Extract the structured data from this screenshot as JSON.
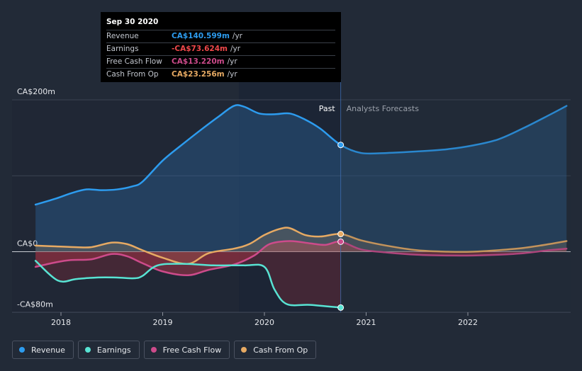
{
  "chart_data": {
    "type": "line",
    "x_axis_ticks": [
      "2018",
      "2019",
      "2020",
      "2021",
      "2022"
    ],
    "y_axis_labels": [
      "CA$200m",
      "CA$0",
      "-CA$80m"
    ],
    "ylim": [
      -80,
      200
    ],
    "x_range": [
      2017.75,
      2022.97
    ],
    "past_forecast_split": 2020.75,
    "region_labels": {
      "past": "Past",
      "forecast": "Analysts Forecasts"
    },
    "series": [
      {
        "name": "Revenue",
        "color": "#2d9cef",
        "fill": true,
        "points": [
          [
            2017.75,
            62
          ],
          [
            2017.95,
            70
          ],
          [
            2018.1,
            77
          ],
          [
            2018.25,
            82
          ],
          [
            2018.4,
            81
          ],
          [
            2018.55,
            82
          ],
          [
            2018.7,
            86
          ],
          [
            2018.8,
            92
          ],
          [
            2019.0,
            120
          ],
          [
            2019.2,
            142
          ],
          [
            2019.4,
            163
          ],
          [
            2019.55,
            178
          ],
          [
            2019.7,
            192
          ],
          [
            2019.8,
            191
          ],
          [
            2019.95,
            182
          ],
          [
            2020.1,
            181
          ],
          [
            2020.25,
            182
          ],
          [
            2020.4,
            174
          ],
          [
            2020.55,
            162
          ],
          [
            2020.75,
            140.6
          ],
          [
            2020.95,
            130
          ],
          [
            2021.2,
            130
          ],
          [
            2021.5,
            132
          ],
          [
            2021.8,
            135
          ],
          [
            2022.05,
            140
          ],
          [
            2022.3,
            148
          ],
          [
            2022.55,
            163
          ],
          [
            2022.8,
            180
          ],
          [
            2022.97,
            192
          ]
        ]
      },
      {
        "name": "Earnings",
        "color": "#58e3d3",
        "fill": true,
        "points": [
          [
            2017.75,
            -12
          ],
          [
            2017.97,
            -38
          ],
          [
            2018.15,
            -36
          ],
          [
            2018.35,
            -34
          ],
          [
            2018.55,
            -34
          ],
          [
            2018.72,
            -35
          ],
          [
            2018.8,
            -32
          ],
          [
            2018.95,
            -18
          ],
          [
            2019.2,
            -16
          ],
          [
            2019.5,
            -18
          ],
          [
            2019.8,
            -18
          ],
          [
            2020.0,
            -20
          ],
          [
            2020.1,
            -50
          ],
          [
            2020.22,
            -69
          ],
          [
            2020.45,
            -70
          ],
          [
            2020.75,
            -73.6
          ]
        ]
      },
      {
        "name": "Free Cash Flow",
        "color": "#cd4b8b",
        "fill": true,
        "points": [
          [
            2017.75,
            -20
          ],
          [
            2017.95,
            -14
          ],
          [
            2018.1,
            -11
          ],
          [
            2018.3,
            -10
          ],
          [
            2018.5,
            -3
          ],
          [
            2018.65,
            -6
          ],
          [
            2018.8,
            -15
          ],
          [
            2019.0,
            -26
          ],
          [
            2019.25,
            -31
          ],
          [
            2019.45,
            -24
          ],
          [
            2019.7,
            -17
          ],
          [
            2019.9,
            -5
          ],
          [
            2020.05,
            10
          ],
          [
            2020.25,
            14
          ],
          [
            2020.45,
            11
          ],
          [
            2020.6,
            9
          ],
          [
            2020.75,
            13.2
          ],
          [
            2020.95,
            3
          ],
          [
            2021.2,
            -1
          ],
          [
            2021.5,
            -4
          ],
          [
            2021.8,
            -5
          ],
          [
            2022.05,
            -5
          ],
          [
            2022.3,
            -4
          ],
          [
            2022.55,
            -2
          ],
          [
            2022.8,
            2
          ],
          [
            2022.97,
            4
          ]
        ]
      },
      {
        "name": "Cash From Op",
        "color": "#e7aa63",
        "fill": true,
        "points": [
          [
            2017.75,
            8
          ],
          [
            2017.95,
            7
          ],
          [
            2018.15,
            6
          ],
          [
            2018.3,
            6
          ],
          [
            2018.5,
            12
          ],
          [
            2018.65,
            10
          ],
          [
            2018.8,
            2
          ],
          [
            2019.0,
            -8
          ],
          [
            2019.25,
            -16
          ],
          [
            2019.45,
            -2
          ],
          [
            2019.7,
            4
          ],
          [
            2019.85,
            10
          ],
          [
            2020.0,
            22
          ],
          [
            2020.15,
            30
          ],
          [
            2020.25,
            31
          ],
          [
            2020.4,
            22
          ],
          [
            2020.55,
            20
          ],
          [
            2020.75,
            23.3
          ],
          [
            2020.95,
            15
          ],
          [
            2021.2,
            8
          ],
          [
            2021.5,
            2
          ],
          [
            2021.8,
            0
          ],
          [
            2022.05,
            0
          ],
          [
            2022.3,
            2
          ],
          [
            2022.55,
            5
          ],
          [
            2022.8,
            10
          ],
          [
            2022.97,
            14
          ]
        ]
      }
    ],
    "tooltip": {
      "date": "Sep 30 2020",
      "rows": [
        {
          "name": "Revenue",
          "value": "CA$140.599m",
          "unit": "/yr",
          "color": "#2d9cef"
        },
        {
          "name": "Earnings",
          "value": "-CA$73.624m",
          "unit": "/yr",
          "color": "#f0484a"
        },
        {
          "name": "Free Cash Flow",
          "value": "CA$13.220m",
          "unit": "/yr",
          "color": "#cd4b8b"
        },
        {
          "name": "Cash From Op",
          "value": "CA$23.256m",
          "unit": "/yr",
          "color": "#e7aa63"
        }
      ]
    }
  },
  "legend": [
    {
      "label": "Revenue",
      "color": "#2d9cef"
    },
    {
      "label": "Earnings",
      "color": "#58e3d3"
    },
    {
      "label": "Free Cash Flow",
      "color": "#cd4b8b"
    },
    {
      "label": "Cash From Op",
      "color": "#e7aa63"
    }
  ]
}
